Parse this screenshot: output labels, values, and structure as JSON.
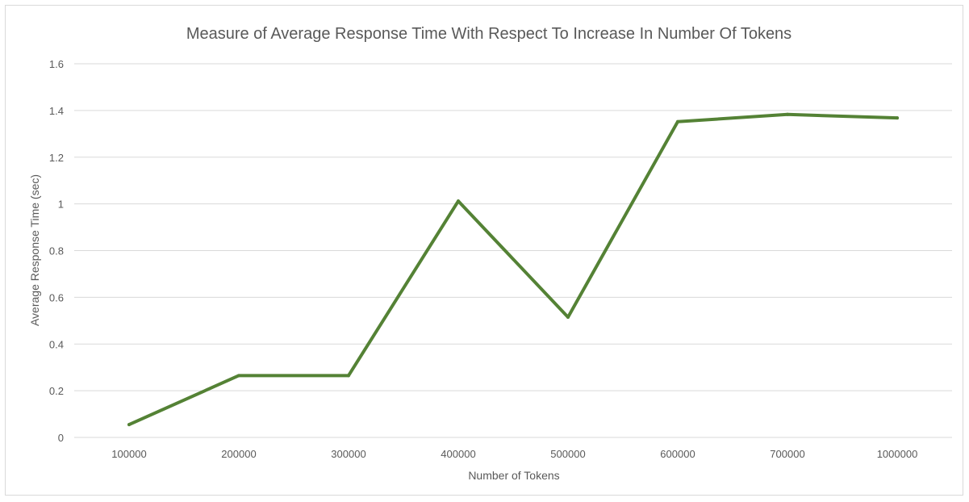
{
  "chart_data": {
    "type": "line",
    "title": "Measure of Average Response Time With Respect To Increase In Number Of Tokens",
    "xlabel": "Number of Tokens",
    "ylabel": "Average Response Time (sec)",
    "categories": [
      "100000",
      "200000",
      "300000",
      "400000",
      "500000",
      "600000",
      "700000",
      "1000000"
    ],
    "series": [
      {
        "values": [
          0.055,
          0.265,
          0.265,
          1.012,
          0.515,
          1.352,
          1.383,
          1.368
        ]
      }
    ],
    "ylim": [
      0,
      1.6
    ],
    "yticks": [
      "0",
      "0.2",
      "0.4",
      "0.6",
      "0.8",
      "1",
      "1.2",
      "1.4",
      "1.6"
    ],
    "ytick_values": [
      0,
      0.2,
      0.4,
      0.6,
      0.8,
      1,
      1.2,
      1.4,
      1.6
    ],
    "grid": true,
    "legend": "none",
    "colors": {
      "line": "#548235",
      "grid": "#d9d9d9",
      "text": "#595959"
    }
  }
}
